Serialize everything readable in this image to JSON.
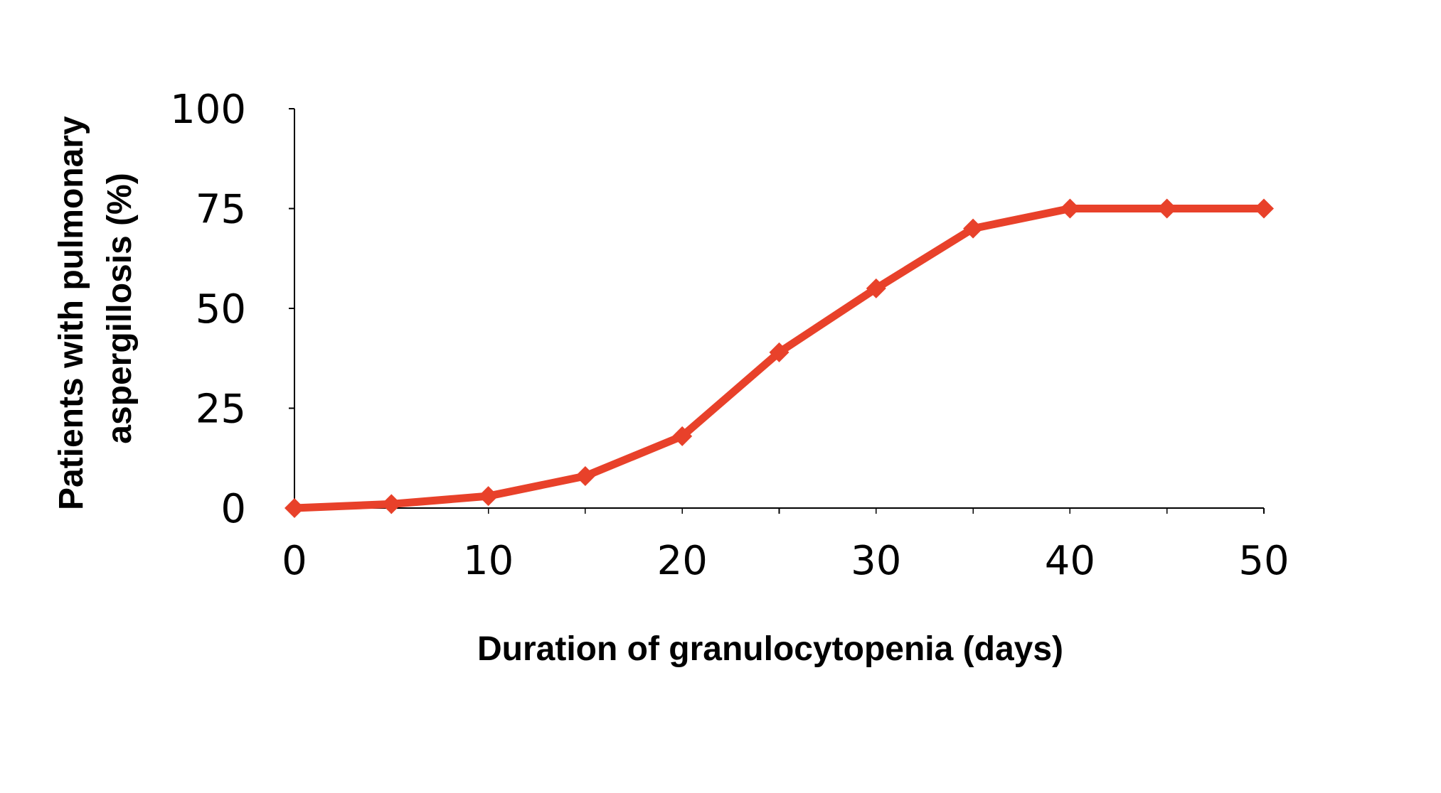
{
  "chart_data": {
    "type": "line",
    "title": "",
    "xlabel": "Duration of granulocytopenia (days)",
    "ylabel_lines": [
      "Patients with pulmonary",
      "aspergillosis (%)"
    ],
    "xlim": [
      0,
      50
    ],
    "ylim": [
      0,
      100
    ],
    "x_ticks": [
      0,
      5,
      10,
      15,
      20,
      25,
      30,
      35,
      40,
      45,
      50
    ],
    "x_tick_labels": [
      "0",
      "10",
      "20",
      "30",
      "40",
      "50"
    ],
    "y_ticks": [
      0,
      25,
      50,
      75,
      100
    ],
    "y_tick_labels": [
      "0",
      "25",
      "50",
      "75",
      "100"
    ],
    "grid": false,
    "legend": "none",
    "series": [
      {
        "color": "#e8412a",
        "marker": "diamond",
        "x": [
          0,
          5,
          10,
          15,
          20,
          25,
          30,
          35,
          40,
          45,
          50
        ],
        "y": [
          0,
          1,
          3,
          8,
          18,
          39,
          55,
          70,
          75,
          75,
          75
        ]
      }
    ]
  }
}
